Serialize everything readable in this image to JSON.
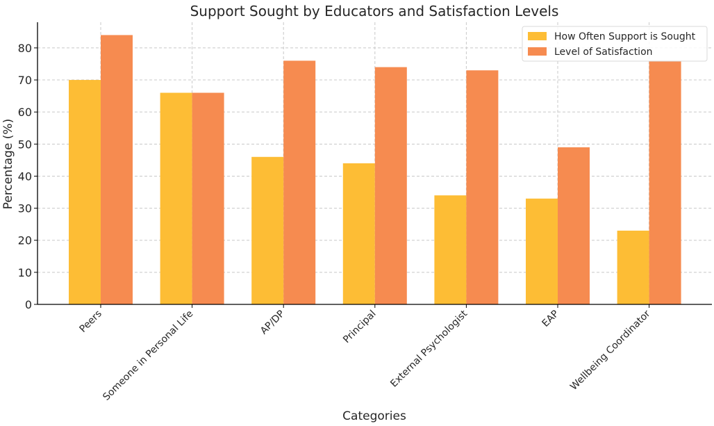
{
  "chart_data": {
    "type": "bar",
    "title": "Support Sought by Educators and Satisfaction Levels",
    "xlabel": "Categories",
    "ylabel": "Percentage (%)",
    "categories": [
      "Peers",
      "Someone in Personal Life",
      "AP/DP",
      "Principal",
      "External Psychologist",
      "EAP",
      "Wellbeing Coordinator"
    ],
    "series": [
      {
        "name": "How Often Support is Sought",
        "color": "#fdbd35",
        "values": [
          70,
          66,
          46,
          44,
          34,
          33,
          23
        ]
      },
      {
        "name": "Level of Satisfaction",
        "color": "#f68b50",
        "values": [
          84,
          66,
          76,
          74,
          73,
          49,
          76
        ]
      }
    ],
    "yticks": [
      0,
      10,
      20,
      30,
      40,
      50,
      60,
      70,
      80
    ],
    "ylim": [
      0,
      88
    ],
    "grid": true,
    "legend_position": "top-right"
  }
}
